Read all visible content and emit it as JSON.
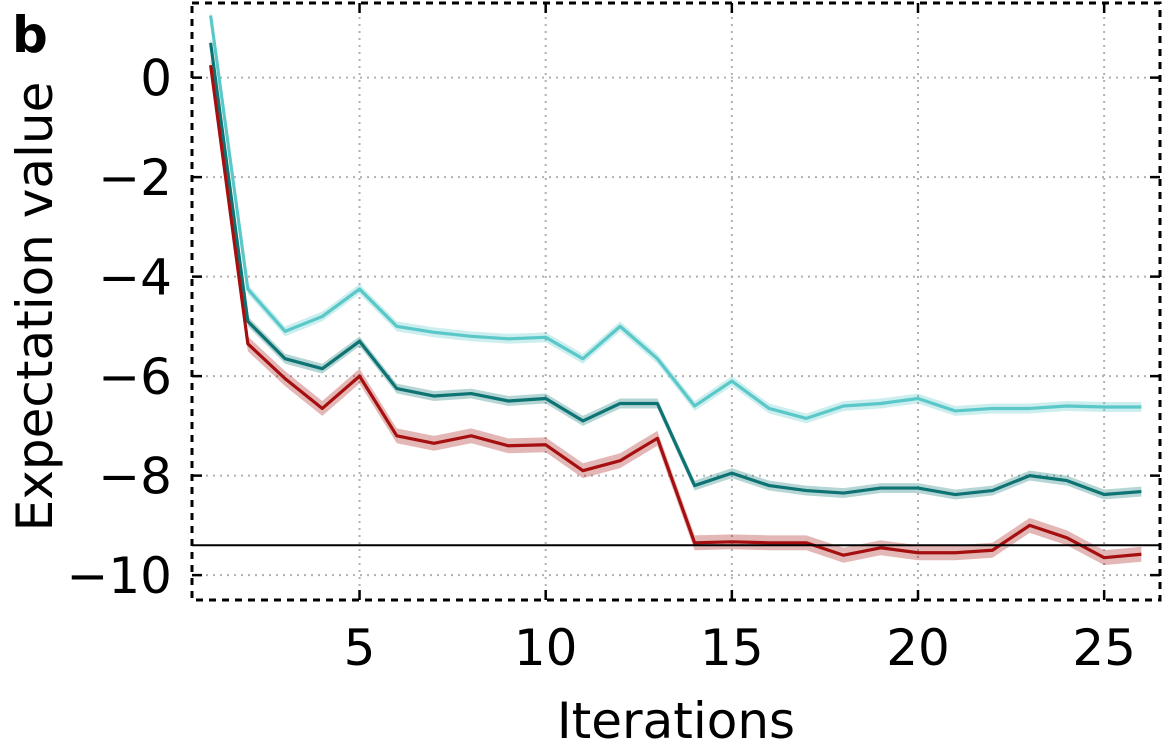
{
  "panel_label": "b",
  "chart_data": {
    "type": "line",
    "title": "",
    "xlabel": "Iterations",
    "ylabel": "Expectation value",
    "xlim": [
      0.5,
      26.5
    ],
    "ylim": [
      -10.5,
      1.5
    ],
    "xticks": [
      5,
      10,
      15,
      20,
      25
    ],
    "yticks": [
      0,
      -2,
      -4,
      -6,
      -8,
      -10
    ],
    "xtick_labels": [
      "5",
      "10",
      "15",
      "20",
      "25"
    ],
    "ytick_labels": [
      "0",
      "−2",
      "−4",
      "−6",
      "−8",
      "−10"
    ],
    "grid": true,
    "reference_line": {
      "y": -9.4,
      "color": "#000000"
    },
    "x": [
      1,
      2,
      3,
      4,
      5,
      6,
      7,
      8,
      9,
      10,
      11,
      12,
      13,
      14,
      15,
      16,
      17,
      18,
      19,
      20,
      21,
      22,
      23,
      24,
      25,
      26
    ],
    "series": [
      {
        "color": "#5ac8c8",
        "band": 0.1,
        "values": [
          1.25,
          -4.25,
          -5.1,
          -4.8,
          -4.25,
          -5.0,
          -5.12,
          -5.2,
          -5.25,
          -5.22,
          -5.65,
          -5.0,
          -5.65,
          -6.6,
          -6.1,
          -6.65,
          -6.85,
          -6.6,
          -6.55,
          -6.45,
          -6.7,
          -6.65,
          -6.65,
          -6.6,
          -6.62,
          -6.62
        ]
      },
      {
        "color": "#0d7373",
        "band": 0.1,
        "values": [
          0.7,
          -4.9,
          -5.65,
          -5.85,
          -5.3,
          -6.25,
          -6.4,
          -6.35,
          -6.5,
          -6.45,
          -6.9,
          -6.55,
          -6.55,
          -8.2,
          -7.95,
          -8.2,
          -8.3,
          -8.35,
          -8.25,
          -8.25,
          -8.38,
          -8.3,
          -8.0,
          -8.1,
          -8.38,
          -8.32
        ]
      },
      {
        "color": "#a50f0f",
        "band": 0.15,
        "values": [
          0.25,
          -5.35,
          -6.05,
          -6.65,
          -6.0,
          -7.2,
          -7.35,
          -7.2,
          -7.4,
          -7.38,
          -7.9,
          -7.7,
          -7.25,
          -9.35,
          -9.33,
          -9.35,
          -9.35,
          -9.6,
          -9.45,
          -9.55,
          -9.55,
          -9.5,
          -9.0,
          -9.25,
          -9.65,
          -9.58
        ]
      }
    ]
  }
}
